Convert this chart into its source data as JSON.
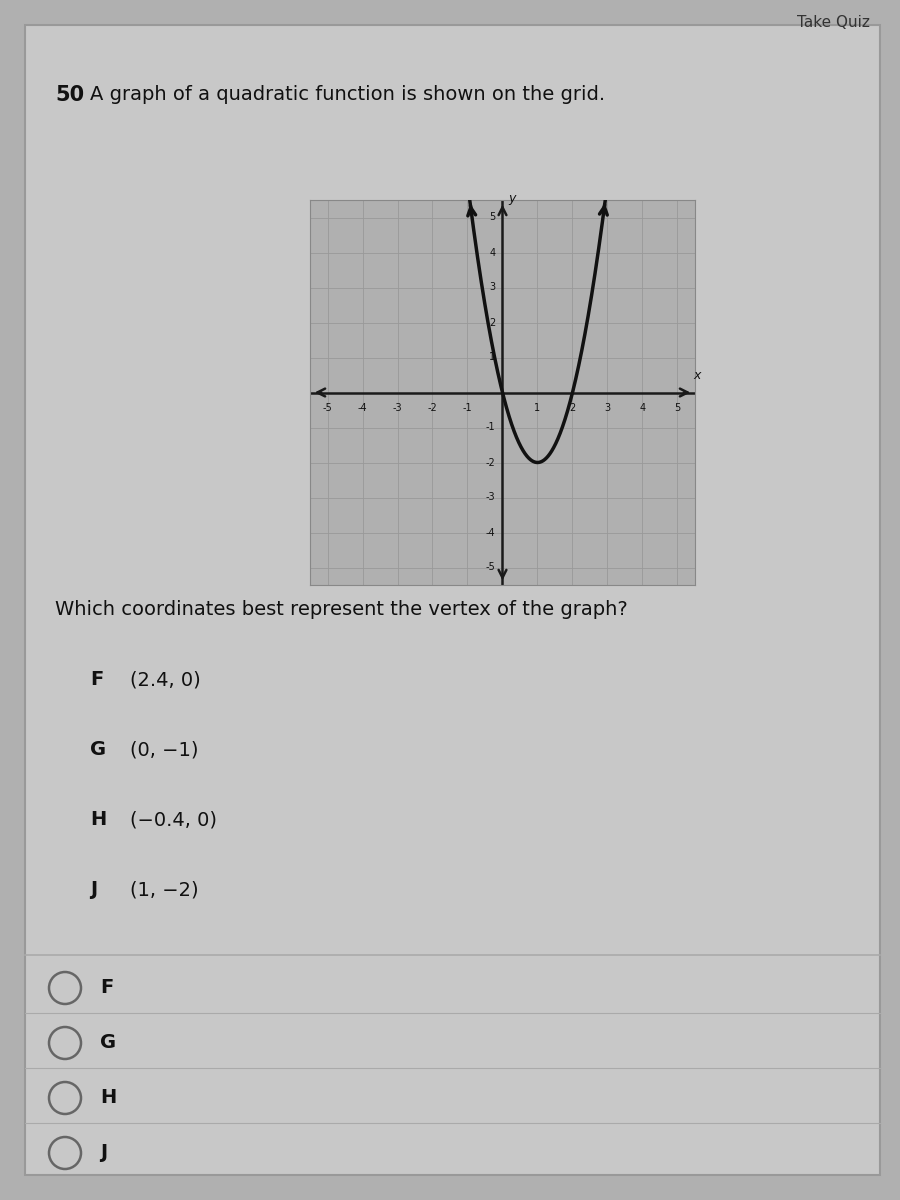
{
  "question_number": "50",
  "question_text": "A graph of a quadratic function is shown on the grid.",
  "question_text2": "Which coordinates best represent the vertex of the graph?",
  "choices": [
    {
      "letter": "F",
      "text": "(2.4, 0)"
    },
    {
      "letter": "G",
      "text": "(0, −1)"
    },
    {
      "letter": "H",
      "text": "(−0.4, 0)"
    },
    {
      "letter": "J",
      "text": "(1, −2)"
    }
  ],
  "answer_options": [
    "F",
    "G",
    "H",
    "J"
  ],
  "outer_bg": "#b0b0b0",
  "panel_bg": "#c8c8c8",
  "panel_edge": "#999999",
  "grid_bg": "#b0b0b0",
  "grid_line_color": "#999999",
  "axis_color": "#1a1a1a",
  "curve_color": "#111111",
  "text_color": "#111111",
  "divider_color": "#aaaaaa",
  "radio_edge_color": "#666666",
  "xlim": [
    -5.5,
    5.5
  ],
  "ylim": [
    -5.5,
    5.5
  ],
  "xticks": [
    -5,
    -4,
    -3,
    -2,
    -1,
    1,
    2,
    3,
    4,
    5
  ],
  "yticks": [
    -5,
    -4,
    -3,
    -2,
    -1,
    1,
    2,
    3,
    4,
    5
  ],
  "vertex_x": 1.0,
  "vertex_y": -2.0,
  "parabola_a": 2.0
}
